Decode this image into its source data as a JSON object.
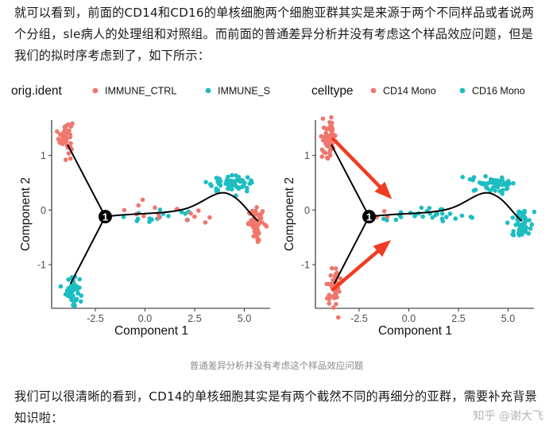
{
  "article": {
    "paragraph1": "就可以看到，前面的CD14和CD16的单核细胞两个细胞亚群其实是来源于两个不同样品或者说两个分组，sle病人的处理组和对照组。而前面的普通差异分析并没有考虑这个样品效应问题，但是我们的拟时序考虑到了，如下所示：",
    "caption": "普通差异分析并没有考虑这个样品效应问题",
    "paragraph2": "我们可以很清晰的看到，CD14的单核细胞其实是有两个截然不同的再细分的亚群，需要补充背景知识啦：",
    "watermark": "知乎 @谢大飞"
  },
  "colors": {
    "red": "#F0766D",
    "teal": "#1DBDC2",
    "arrow": "#F03C22",
    "line": "#000000"
  },
  "chart_data": [
    {
      "type": "scatter",
      "title": "",
      "legend_title": "orig.ident",
      "legend_position": "top-left",
      "series": [
        {
          "name": "IMMUNE_CTRL",
          "color": "#F0766D"
        },
        {
          "name": "IMMUNE_S",
          "color": "#1DBDC2"
        }
      ],
      "xlabel": "Component 1",
      "ylabel": "Component 2",
      "xlim": [
        -4.7,
        6.3
      ],
      "ylim": [
        -1.8,
        1.65
      ],
      "xticks": [
        -2.5,
        0.0,
        2.5,
        5.0
      ],
      "xtick_labels": [
        "-2.5",
        "0.0",
        "2.5",
        "5.0"
      ],
      "yticks": [
        -1,
        0,
        1
      ],
      "ytick_labels": [
        "-1",
        "0",
        "1"
      ],
      "branch_node": {
        "x": -2.0,
        "y": -0.12,
        "label": "1"
      },
      "groups": [
        {
          "series": "IMMUNE_CTRL",
          "cx": -4.0,
          "cy": 1.35,
          "sx": 0.17,
          "sy": 0.15,
          "n": 55
        },
        {
          "series": "IMMUNE_S",
          "cx": -3.65,
          "cy": -1.45,
          "sx": 0.17,
          "sy": 0.14,
          "n": 50
        },
        {
          "series": "IMMUNE_S",
          "cx": 4.3,
          "cy": 0.48,
          "sx": 0.6,
          "sy": 0.07,
          "n": 60
        },
        {
          "series": "IMMUNE_CTRL",
          "cx": 5.65,
          "cy": -0.25,
          "sx": 0.22,
          "sy": 0.13,
          "n": 55
        },
        {
          "series": "IMMUNE_S",
          "cx": 0.8,
          "cy": -0.12,
          "sx": 1.1,
          "sy": 0.06,
          "n": 18
        },
        {
          "series": "IMMUNE_CTRL",
          "cx": 0.6,
          "cy": -0.08,
          "sx": 1.3,
          "sy": 0.09,
          "n": 16
        }
      ],
      "arrows": []
    },
    {
      "type": "scatter",
      "title": "",
      "legend_title": "celltype",
      "legend_position": "top-right",
      "series": [
        {
          "name": "CD14 Mono",
          "color": "#F0766D"
        },
        {
          "name": "CD16 Mono",
          "color": "#1DBDC2"
        }
      ],
      "xlabel": "Component 1",
      "ylabel": "Component 2",
      "xlim": [
        -4.7,
        6.3
      ],
      "ylim": [
        -1.8,
        1.65
      ],
      "xticks": [
        -2.5,
        0.0,
        2.5,
        5.0
      ],
      "xtick_labels": [
        "-2.5",
        "0.0",
        "2.5",
        "5.0"
      ],
      "yticks": [
        -1,
        0,
        1
      ],
      "ytick_labels": [
        "-1",
        "0",
        "1"
      ],
      "branch_node": {
        "x": -2.0,
        "y": -0.12,
        "label": "1"
      },
      "groups": [
        {
          "series": "CD14 Mono",
          "cx": -4.0,
          "cy": 1.3,
          "sx": 0.17,
          "sy": 0.17,
          "n": 60
        },
        {
          "series": "CD14 Mono",
          "cx": -3.75,
          "cy": -1.4,
          "sx": 0.16,
          "sy": 0.16,
          "n": 55
        },
        {
          "series": "CD16 Mono",
          "cx": 4.3,
          "cy": 0.48,
          "sx": 0.6,
          "sy": 0.07,
          "n": 55
        },
        {
          "series": "CD16 Mono",
          "cx": 5.65,
          "cy": -0.25,
          "sx": 0.22,
          "sy": 0.13,
          "n": 55
        },
        {
          "series": "CD16 Mono",
          "cx": 0.6,
          "cy": -0.1,
          "sx": 1.4,
          "sy": 0.07,
          "n": 30
        },
        {
          "series": "CD14 Mono",
          "cx": -1.5,
          "cy": -0.1,
          "sx": 0.2,
          "sy": 0.06,
          "n": 3
        }
      ],
      "arrows": [
        {
          "from": [
            -3.8,
            1.3
          ],
          "to": [
            -0.85,
            0.2
          ]
        },
        {
          "from": [
            -3.8,
            -1.45
          ],
          "to": [
            -0.9,
            -0.55
          ]
        }
      ]
    }
  ]
}
